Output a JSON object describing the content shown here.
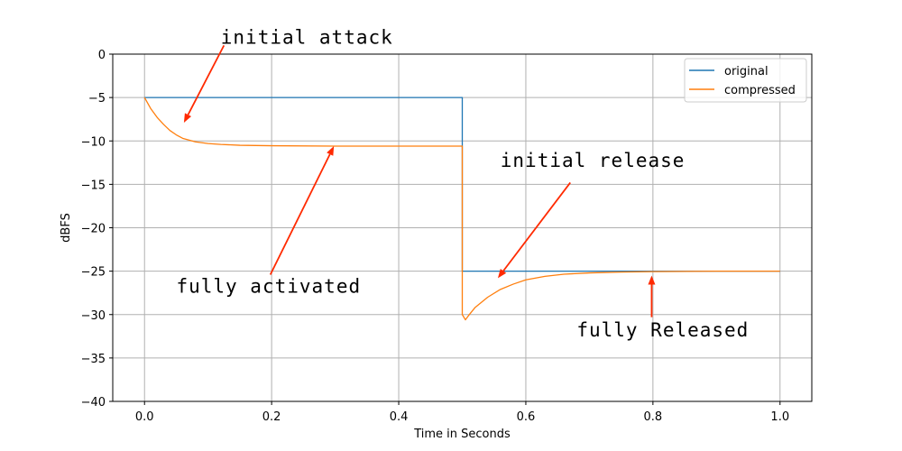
{
  "chart_data": {
    "type": "line",
    "title": "",
    "xlabel": "Time in Seconds",
    "ylabel": "dBFS",
    "xlim": [
      -0.05,
      1.05
    ],
    "ylim": [
      -40,
      0
    ],
    "xticks": [
      0.0,
      0.2,
      0.4,
      0.6,
      0.8,
      1.0
    ],
    "xtick_labels": [
      "0.0",
      "0.2",
      "0.4",
      "0.6",
      "0.8",
      "1.0"
    ],
    "yticks": [
      0,
      -5,
      -10,
      -15,
      -20,
      -25,
      -30,
      -35,
      -40
    ],
    "ytick_labels": [
      "0",
      "−5",
      "−10",
      "−15",
      "−20",
      "−25",
      "−30",
      "−35",
      "−40"
    ],
    "grid": true,
    "legend_position": "top-right",
    "series": [
      {
        "name": "original",
        "color": "#1f77b4",
        "x": [
          0.0,
          0.5,
          0.5,
          1.0
        ],
        "y": [
          -5,
          -5,
          -25,
          -25
        ]
      },
      {
        "name": "compressed",
        "color": "#ff7f0e",
        "x": [
          0.0,
          0.01,
          0.02,
          0.03,
          0.04,
          0.05,
          0.06,
          0.08,
          0.1,
          0.12,
          0.15,
          0.2,
          0.3,
          0.4,
          0.5,
          0.5,
          0.505,
          0.51,
          0.52,
          0.54,
          0.56,
          0.58,
          0.6,
          0.63,
          0.66,
          0.7,
          0.75,
          0.8,
          0.9,
          1.0
        ],
        "y": [
          -5.0,
          -6.3,
          -7.3,
          -8.1,
          -8.8,
          -9.3,
          -9.7,
          -10.1,
          -10.3,
          -10.4,
          -10.5,
          -10.55,
          -10.6,
          -10.6,
          -10.6,
          -30.0,
          -30.6,
          -30.1,
          -29.2,
          -28.0,
          -27.1,
          -26.5,
          -26.0,
          -25.6,
          -25.35,
          -25.2,
          -25.1,
          -25.05,
          -25.0,
          -25.0
        ]
      }
    ],
    "annotations": [
      {
        "text": "initial attack",
        "x": 0.12,
        "y": 1.2,
        "arrow_x": 0.062,
        "arrow_y": -7.9,
        "arrow_from_x": 0.125,
        "arrow_from_y": 1.0
      },
      {
        "text": "fully activated",
        "x": 0.05,
        "y": -27.5,
        "arrow_x": 0.298,
        "arrow_y": -10.6,
        "arrow_from_x": 0.198,
        "arrow_from_y": -25.4
      },
      {
        "text": "initial release",
        "x": 0.56,
        "y": -13.0,
        "arrow_x": 0.556,
        "arrow_y": -25.8,
        "arrow_from_x": 0.67,
        "arrow_from_y": -14.8
      },
      {
        "text": "fully Released",
        "x": 0.68,
        "y": -32.5,
        "arrow_x": 0.798,
        "arrow_y": -25.5,
        "arrow_from_x": 0.798,
        "arrow_from_y": -30.3
      }
    ],
    "annotation_color": "#ff2a00"
  }
}
